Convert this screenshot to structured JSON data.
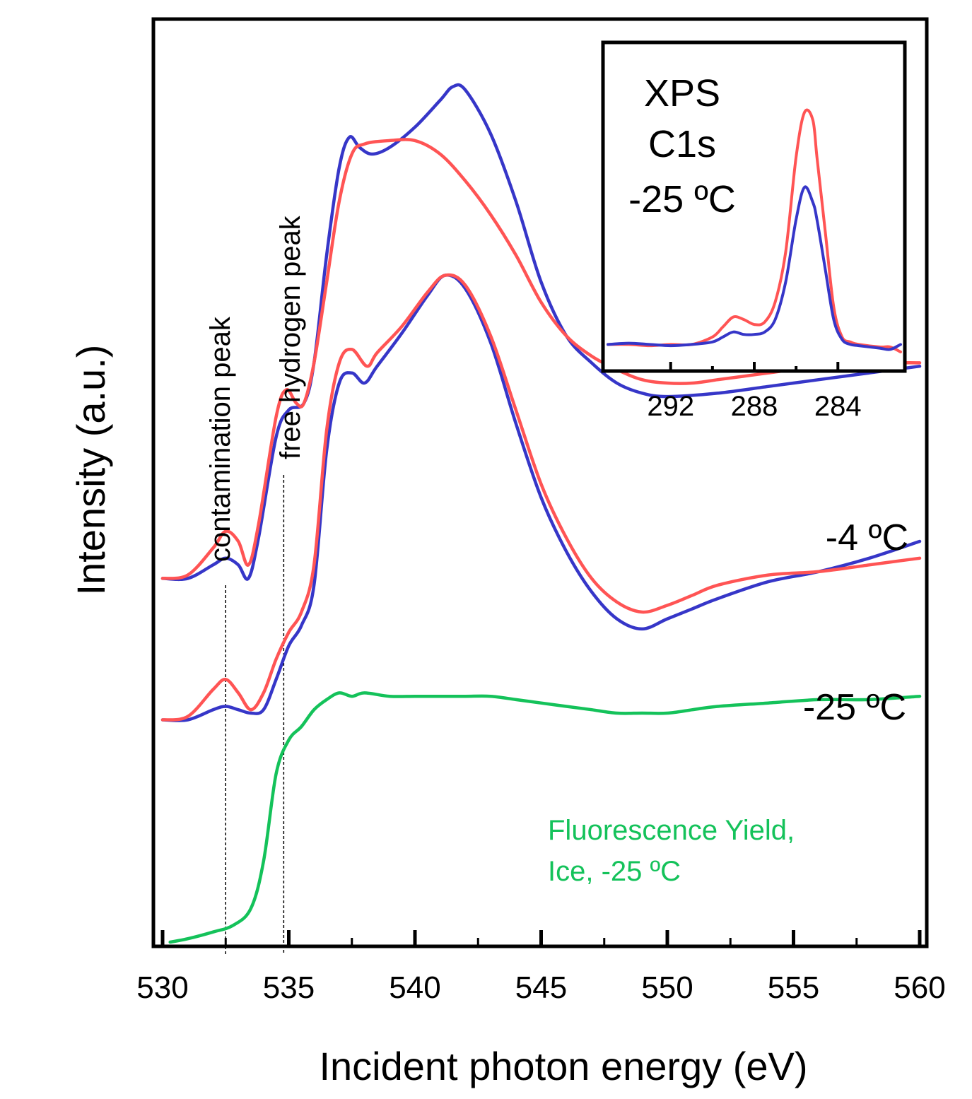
{
  "colors": {
    "background": "#ffffff",
    "red": "#ff5454",
    "blue": "#3636c8",
    "green": "#14c25a",
    "orange": "#ff7a1a",
    "frame": "#000000"
  },
  "chart_data": [
    {
      "type": "line",
      "title": "",
      "xlabel": "Incident photon energy (eV)",
      "ylabel": "Intensity (a.u.)",
      "xlim": [
        530,
        560
      ],
      "x_ticks": [
        530,
        535,
        540,
        545,
        550,
        555,
        560
      ],
      "y_ticks": [],
      "grid": false,
      "annotations": {
        "contamination": {
          "text": "contamination peak",
          "x": 532.5
        },
        "free_hydrogen": {
          "text": "free hydrogen peak",
          "x": 534.8
        },
        "temp_upper": "-4 ºC",
        "temp_lower": "-25 ºC",
        "fy_line1": "Fluorescence Yield,",
        "fy_line2": "Ice, -25 ºC"
      },
      "series": [
        {
          "group": "-4 ºC",
          "color": "red",
          "points": [
            [
              530,
              0.54
            ],
            [
              531,
              0.545
            ],
            [
              532,
              0.585
            ],
            [
              532.5,
              0.61
            ],
            [
              533,
              0.595
            ],
            [
              533.4,
              0.56
            ],
            [
              533.8,
              0.62
            ],
            [
              534.5,
              0.78
            ],
            [
              534.9,
              0.82
            ],
            [
              535.3,
              0.8
            ],
            [
              535.6,
              0.8
            ],
            [
              536,
              0.86
            ],
            [
              536.5,
              0.98
            ],
            [
              537,
              1.1
            ],
            [
              537.5,
              1.17
            ],
            [
              538,
              1.185
            ],
            [
              539,
              1.19
            ],
            [
              540,
              1.19
            ],
            [
              541,
              1.17
            ],
            [
              542,
              1.13
            ],
            [
              543,
              1.08
            ],
            [
              544,
              1.02
            ],
            [
              545,
              0.95
            ],
            [
              546,
              0.9
            ],
            [
              547,
              0.87
            ],
            [
              548,
              0.85
            ],
            [
              549,
              0.835
            ],
            [
              550,
              0.83
            ],
            [
              551,
              0.83
            ],
            [
              552,
              0.835
            ],
            [
              553,
              0.84
            ],
            [
              554,
              0.845
            ],
            [
              556,
              0.855
            ],
            [
              558,
              0.86
            ],
            [
              560,
              0.86
            ]
          ]
        },
        {
          "group": "-4 ºC",
          "color": "blue",
          "points": [
            [
              530,
              0.54
            ],
            [
              531,
              0.54
            ],
            [
              532,
              0.56
            ],
            [
              532.5,
              0.57
            ],
            [
              533,
              0.56
            ],
            [
              533.4,
              0.54
            ],
            [
              533.8,
              0.6
            ],
            [
              534.5,
              0.75
            ],
            [
              535,
              0.79
            ],
            [
              535.6,
              0.8
            ],
            [
              536,
              0.86
            ],
            [
              536.5,
              1.02
            ],
            [
              537,
              1.15
            ],
            [
              537.4,
              1.195
            ],
            [
              537.8,
              1.18
            ],
            [
              538.3,
              1.17
            ],
            [
              539,
              1.18
            ],
            [
              540,
              1.21
            ],
            [
              541,
              1.25
            ],
            [
              541.5,
              1.27
            ],
            [
              542,
              1.265
            ],
            [
              543,
              1.2
            ],
            [
              544,
              1.1
            ],
            [
              545,
              0.98
            ],
            [
              546,
              0.9
            ],
            [
              547,
              0.86
            ],
            [
              548,
              0.83
            ],
            [
              549,
              0.815
            ],
            [
              550,
              0.81
            ],
            [
              552,
              0.815
            ],
            [
              554,
              0.825
            ],
            [
              556,
              0.835
            ],
            [
              558,
              0.845
            ],
            [
              560,
              0.855
            ]
          ]
        },
        {
          "group": "-25 ºC",
          "color": "red",
          "points": [
            [
              530,
              0.33
            ],
            [
              531,
              0.335
            ],
            [
              532,
              0.375
            ],
            [
              532.5,
              0.39
            ],
            [
              533,
              0.37
            ],
            [
              533.5,
              0.345
            ],
            [
              534,
              0.37
            ],
            [
              534.5,
              0.42
            ],
            [
              535,
              0.46
            ],
            [
              535.5,
              0.49
            ],
            [
              536,
              0.56
            ],
            [
              536.5,
              0.76
            ],
            [
              537,
              0.86
            ],
            [
              537.5,
              0.88
            ],
            [
              538.1,
              0.855
            ],
            [
              538.5,
              0.875
            ],
            [
              539.5,
              0.915
            ],
            [
              540.5,
              0.965
            ],
            [
              541.2,
              0.99
            ],
            [
              542,
              0.975
            ],
            [
              543,
              0.9
            ],
            [
              544,
              0.79
            ],
            [
              545,
              0.68
            ],
            [
              546,
              0.6
            ],
            [
              547,
              0.54
            ],
            [
              548,
              0.505
            ],
            [
              549,
              0.49
            ],
            [
              550,
              0.5
            ],
            [
              551,
              0.515
            ],
            [
              552,
              0.53
            ],
            [
              554,
              0.545
            ],
            [
              556,
              0.55
            ],
            [
              558,
              0.56
            ],
            [
              560,
              0.57
            ]
          ]
        },
        {
          "group": "-25 ºC",
          "color": "blue",
          "points": [
            [
              530,
              0.33
            ],
            [
              531,
              0.33
            ],
            [
              532,
              0.345
            ],
            [
              532.5,
              0.35
            ],
            [
              533,
              0.345
            ],
            [
              533.5,
              0.34
            ],
            [
              534,
              0.345
            ],
            [
              534.5,
              0.39
            ],
            [
              535,
              0.44
            ],
            [
              535.5,
              0.47
            ],
            [
              536,
              0.53
            ],
            [
              536.5,
              0.73
            ],
            [
              537,
              0.83
            ],
            [
              537.5,
              0.845
            ],
            [
              538,
              0.83
            ],
            [
              538.5,
              0.855
            ],
            [
              539.5,
              0.905
            ],
            [
              540.5,
              0.96
            ],
            [
              541.2,
              0.99
            ],
            [
              542,
              0.97
            ],
            [
              543,
              0.89
            ],
            [
              544,
              0.77
            ],
            [
              545,
              0.66
            ],
            [
              546,
              0.58
            ],
            [
              547,
              0.52
            ],
            [
              548,
              0.48
            ],
            [
              549,
              0.465
            ],
            [
              550,
              0.48
            ],
            [
              551,
              0.495
            ],
            [
              552,
              0.51
            ],
            [
              554,
              0.535
            ],
            [
              556,
              0.55
            ],
            [
              558,
              0.57
            ],
            [
              560,
              0.595
            ]
          ]
        },
        {
          "group": "Fluorescence Yield, Ice, -25 ºC",
          "color": "green",
          "points": [
            [
              530.3,
              0.0
            ],
            [
              531,
              0.005
            ],
            [
              532,
              0.015
            ],
            [
              532.8,
              0.025
            ],
            [
              533.5,
              0.05
            ],
            [
              534,
              0.12
            ],
            [
              534.5,
              0.25
            ],
            [
              535,
              0.3
            ],
            [
              535.5,
              0.32
            ],
            [
              536,
              0.345
            ],
            [
              536.5,
              0.36
            ],
            [
              537,
              0.37
            ],
            [
              537.5,
              0.365
            ],
            [
              538,
              0.37
            ],
            [
              539,
              0.365
            ],
            [
              540,
              0.365
            ],
            [
              541,
              0.365
            ],
            [
              542,
              0.365
            ],
            [
              543,
              0.365
            ],
            [
              544,
              0.36
            ],
            [
              545,
              0.355
            ],
            [
              546,
              0.35
            ],
            [
              547,
              0.345
            ],
            [
              548,
              0.34
            ],
            [
              549,
              0.34
            ],
            [
              550,
              0.34
            ],
            [
              551,
              0.345
            ],
            [
              552,
              0.35
            ],
            [
              554,
              0.355
            ],
            [
              556,
              0.36
            ],
            [
              558,
              0.36
            ],
            [
              560,
              0.365
            ]
          ]
        }
      ]
    },
    {
      "type": "line",
      "title": "",
      "inset_label": [
        "XPS",
        "C1s",
        "-25 ºC"
      ],
      "xlim": [
        295,
        281
      ],
      "x_ticks": [
        292,
        290,
        288,
        286,
        284
      ],
      "x_tick_labels": [
        "292",
        "288",
        "284"
      ],
      "ylim": [
        0,
        1
      ],
      "grid": false,
      "series": [
        {
          "color": "red",
          "points": [
            [
              295,
              0.05
            ],
            [
              294,
              0.05
            ],
            [
              293,
              0.045
            ],
            [
              292,
              0.05
            ],
            [
              291,
              0.05
            ],
            [
              290,
              0.08
            ],
            [
              289.5,
              0.12
            ],
            [
              289,
              0.16
            ],
            [
              288.5,
              0.15
            ],
            [
              288,
              0.13
            ],
            [
              287.5,
              0.14
            ],
            [
              287,
              0.22
            ],
            [
              286.5,
              0.42
            ],
            [
              286,
              0.8
            ],
            [
              285.6,
              0.98
            ],
            [
              285.2,
              0.95
            ],
            [
              285,
              0.8
            ],
            [
              284.6,
              0.5
            ],
            [
              284.2,
              0.2
            ],
            [
              283.8,
              0.08
            ],
            [
              283.4,
              0.06
            ],
            [
              283,
              0.05
            ],
            [
              282,
              0.04
            ],
            [
              281.5,
              0.04
            ],
            [
              281,
              0.02
            ]
          ]
        },
        {
          "color": "blue",
          "points": [
            [
              295,
              0.05
            ],
            [
              294,
              0.055
            ],
            [
              293,
              0.05
            ],
            [
              292,
              0.045
            ],
            [
              291,
              0.05
            ],
            [
              290,
              0.06
            ],
            [
              289.5,
              0.08
            ],
            [
              289,
              0.1
            ],
            [
              288.5,
              0.09
            ],
            [
              288,
              0.09
            ],
            [
              287.5,
              0.1
            ],
            [
              287,
              0.15
            ],
            [
              286.5,
              0.3
            ],
            [
              286,
              0.55
            ],
            [
              285.6,
              0.68
            ],
            [
              285.2,
              0.62
            ],
            [
              285,
              0.55
            ],
            [
              284.6,
              0.35
            ],
            [
              284.2,
              0.15
            ],
            [
              283.8,
              0.07
            ],
            [
              283.4,
              0.05
            ],
            [
              283,
              0.045
            ],
            [
              282,
              0.035
            ],
            [
              281.5,
              0.03
            ],
            [
              281,
              0.05
            ]
          ]
        }
      ]
    }
  ]
}
